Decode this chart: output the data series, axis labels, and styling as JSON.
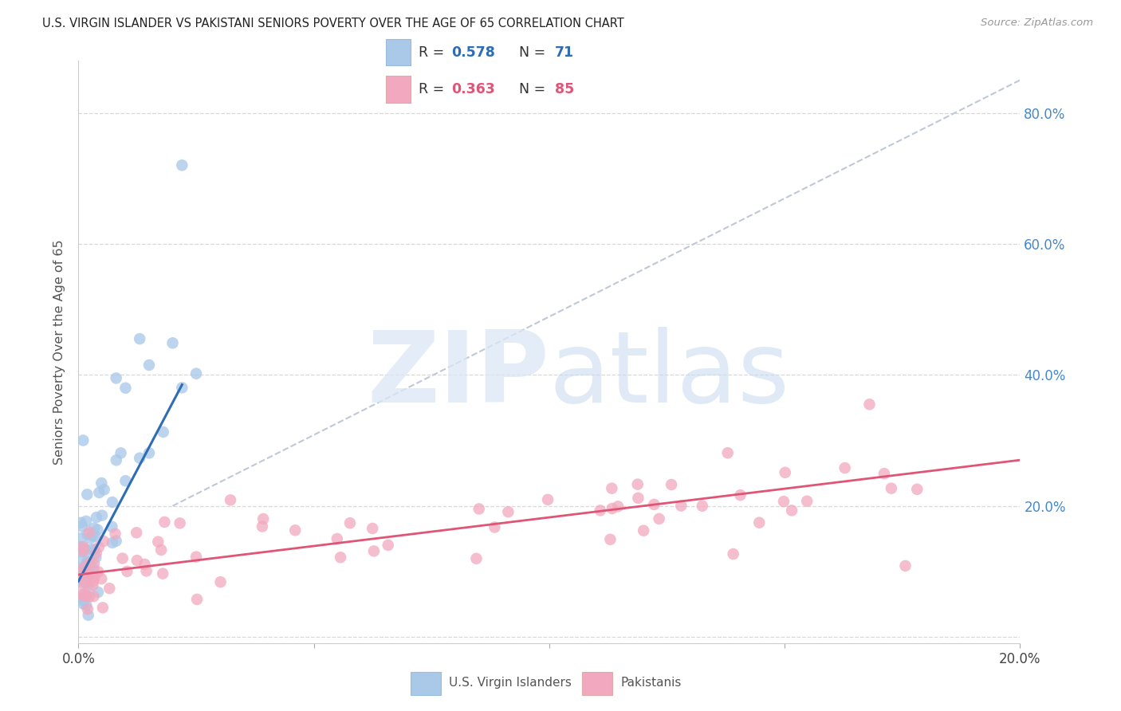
{
  "title": "U.S. VIRGIN ISLANDER VS PAKISTANI SENIORS POVERTY OVER THE AGE OF 65 CORRELATION CHART",
  "source": "Source: ZipAtlas.com",
  "ylabel": "Seniors Poverty Over the Age of 65",
  "xlim": [
    0.0,
    0.2
  ],
  "ylim": [
    -0.01,
    0.88
  ],
  "right_yticks": [
    0.2,
    0.4,
    0.6,
    0.8
  ],
  "right_ytick_labels": [
    "20.0%",
    "40.0%",
    "60.0%",
    "80.0%"
  ],
  "blue_color": "#aac8e8",
  "blue_line_color": "#2e6db4",
  "pink_color": "#f2a8be",
  "pink_line_color": "#e05575",
  "diag_color": "#c0c8d8",
  "watermark_zip_color": "#d0dff0",
  "watermark_atlas_color": "#b8cfe8",
  "bg_color": "#ffffff",
  "grid_color": "#d8d8d8",
  "title_color": "#222222",
  "right_axis_color": "#4488cc",
  "legend_r1_color": "#2e6db4",
  "legend_n1_color": "#2e6db4",
  "legend_r2_color": "#e05575",
  "legend_n2_color": "#e05575",
  "bottom_label_color": "#555555",
  "blue_line_x": [
    0.0,
    0.022
  ],
  "blue_line_y": [
    0.085,
    0.385
  ],
  "pink_line_x": [
    0.0,
    0.2
  ],
  "pink_line_y": [
    0.095,
    0.27
  ],
  "diag_line_x": [
    0.02,
    0.2
  ],
  "diag_line_y": [
    0.2,
    0.85
  ]
}
